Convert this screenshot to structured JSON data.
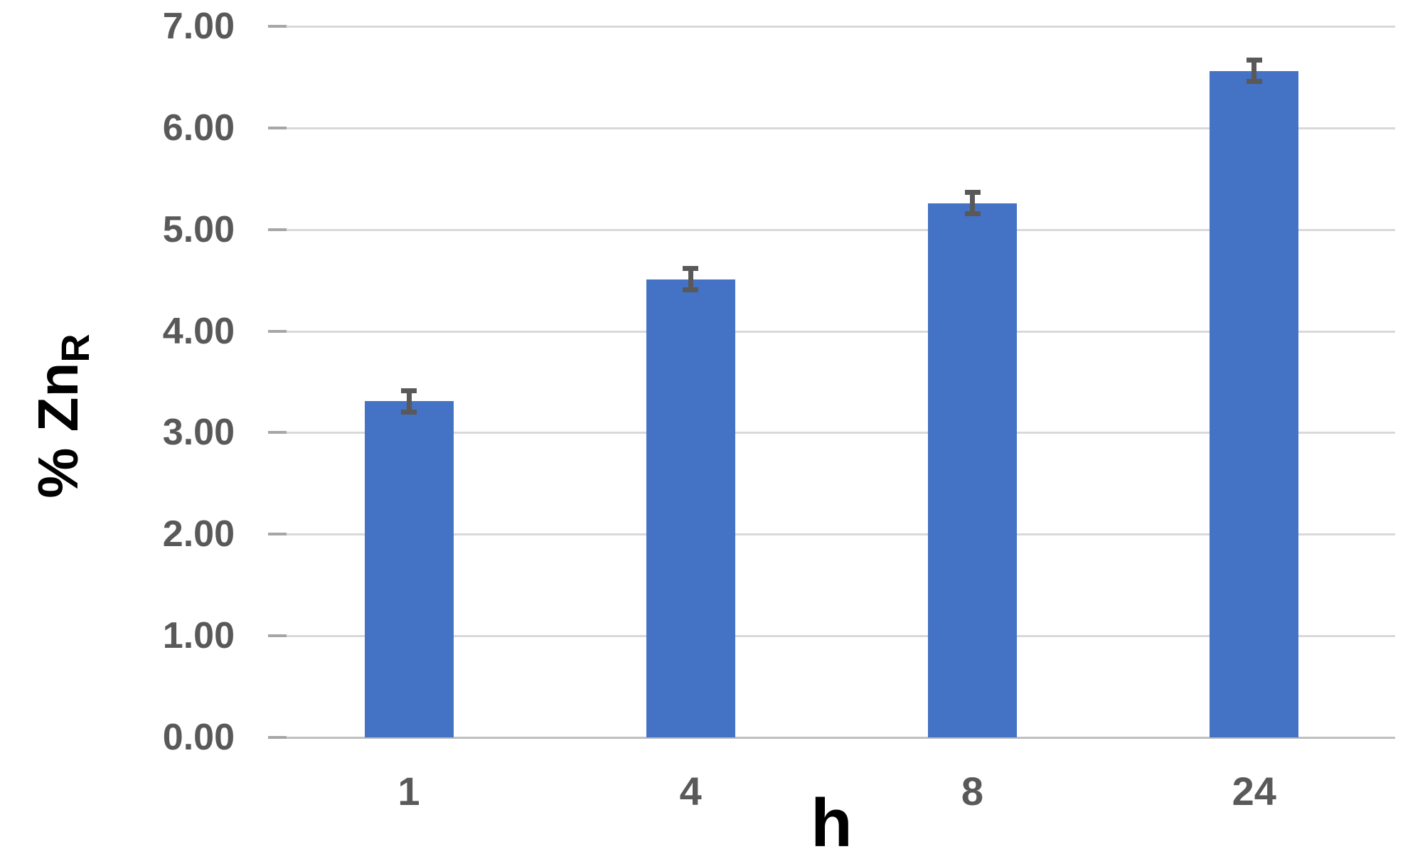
{
  "figure": {
    "background_color": "#ffffff"
  },
  "chart_data": {
    "type": "bar",
    "title": "",
    "categories": [
      "1",
      "4",
      "8",
      "24"
    ],
    "values": [
      3.31,
      4.51,
      5.26,
      6.56
    ],
    "error_bars": [
      0.13,
      0.13,
      0.13,
      0.13
    ],
    "xlabel": "h",
    "ylabel": "% Zn",
    "ylabel_subscript": "R",
    "ylim": [
      0,
      7
    ],
    "ytick_step": 1,
    "ytick_labels": [
      "0.00",
      "1.00",
      "2.00",
      "3.00",
      "4.00",
      "5.00",
      "6.00",
      "7.00"
    ],
    "grid": true,
    "legend": false,
    "bar_color": "#4472C4",
    "error_bar_color": "#595959",
    "gridline_color": "#D9D9D9",
    "axis_line_color": "#BFBFBF",
    "tick_mark_color": "#A6A6A6",
    "tick_label_color": "#595959",
    "axis_title_color": "#000000"
  }
}
